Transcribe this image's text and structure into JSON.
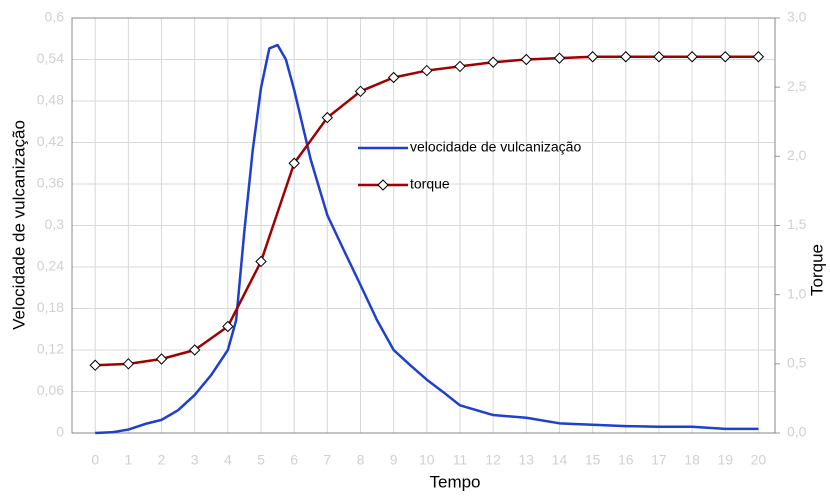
{
  "chart_data": {
    "type": "line",
    "xlabel": "Tempo",
    "ylabel": "Velocidade de vulcanização",
    "y2label": "Torque",
    "xlim": [
      -0.7,
      20.5
    ],
    "xticks": [
      0,
      1,
      2,
      3,
      4,
      5,
      6,
      7,
      8,
      9,
      10,
      11,
      12,
      13,
      14,
      15,
      16,
      17,
      18,
      19,
      20
    ],
    "ylim": [
      0,
      0.6
    ],
    "yticks": [
      {
        "value": 0,
        "label": "0"
      },
      {
        "value": 0.06,
        "label": "0,06"
      },
      {
        "value": 0.12,
        "label": "0,12"
      },
      {
        "value": 0.18,
        "label": "0,18"
      },
      {
        "value": 0.24,
        "label": "0,24"
      },
      {
        "value": 0.3,
        "label": "0,3"
      },
      {
        "value": 0.36,
        "label": "0,36"
      },
      {
        "value": 0.42,
        "label": "0,42"
      },
      {
        "value": 0.48,
        "label": "0,48"
      },
      {
        "value": 0.54,
        "label": "0,54"
      },
      {
        "value": 0.6,
        "label": "0,6"
      }
    ],
    "y2lim": [
      0,
      3
    ],
    "y2ticks": [
      {
        "value": 0,
        "label": "0,0"
      },
      {
        "value": 0.5,
        "label": "0,5"
      },
      {
        "value": 1,
        "label": "1,0"
      },
      {
        "value": 1.5,
        "label": "1,5"
      },
      {
        "value": 2,
        "label": "2,0"
      },
      {
        "value": 2.5,
        "label": "2,5"
      },
      {
        "value": 3,
        "label": "3,0"
      }
    ],
    "grid": true,
    "series": [
      {
        "name": "velocidade de vulcanização",
        "color": "#1f3fcf",
        "axis": "y",
        "x": [
          0,
          0.5,
          1,
          1.5,
          2,
          2.5,
          3,
          3.5,
          4,
          4.25,
          4.5,
          4.75,
          5,
          5.25,
          5.5,
          5.75,
          6,
          6.5,
          7,
          7.5,
          8,
          8.5,
          9,
          9.5,
          10,
          10.5,
          11,
          12,
          13,
          14,
          15,
          16,
          17,
          18,
          19,
          20
        ],
        "values": [
          0,
          0.001,
          0.005,
          0.013,
          0.019,
          0.033,
          0.055,
          0.084,
          0.12,
          0.163,
          0.293,
          0.409,
          0.499,
          0.556,
          0.561,
          0.54,
          0.496,
          0.395,
          0.315,
          0.264,
          0.214,
          0.163,
          0.12,
          0.098,
          0.077,
          0.059,
          0.04,
          0.026,
          0.022,
          0.014,
          0.012,
          0.01,
          0.009,
          0.009,
          0.006,
          0.006
        ]
      },
      {
        "name": "torque",
        "color": "#a00000",
        "axis": "y2",
        "marker": "diamond",
        "x": [
          0,
          1,
          2,
          3,
          4,
          5,
          6,
          7,
          8,
          9,
          10,
          11,
          12,
          13,
          14,
          15,
          16,
          17,
          18,
          19,
          20
        ],
        "values": [
          0.49,
          0.5,
          0.535,
          0.6,
          0.77,
          1.24,
          1.95,
          2.28,
          2.47,
          2.57,
          2.62,
          2.65,
          2.68,
          2.7,
          2.71,
          2.72,
          2.72,
          2.72,
          2.72,
          2.72,
          2.72
        ]
      }
    ]
  }
}
